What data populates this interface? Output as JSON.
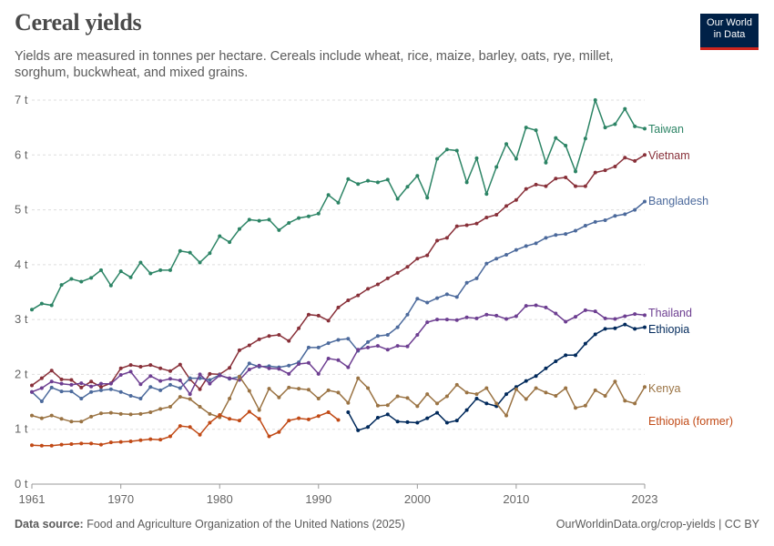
{
  "header": {
    "title": "Cereal yields",
    "subtitle": "Yields are measured in tonnes per hectare. Cereals include wheat, rice, maize, barley, oats, rye, millet, sorghum, buckwheat, and mixed grains."
  },
  "logo": {
    "line1": "Our World",
    "line2": "in Data",
    "bg": "#002147",
    "accent": "#ce261e"
  },
  "footer": {
    "source_label": "Data source:",
    "source_text": "Food and Agriculture Organization of the United Nations (2025)",
    "url_license": "OurWorldinData.org/crop-yields | CC BY"
  },
  "chart_data": {
    "type": "line",
    "title": "Cereal yields",
    "xlabel": "",
    "ylabel": "",
    "xlim": [
      1961,
      2023
    ],
    "ylim": [
      0,
      7
    ],
    "y_ticks": [
      0,
      1,
      2,
      3,
      4,
      5,
      6,
      7
    ],
    "y_tick_labels": [
      "0 t",
      "1 t",
      "2 t",
      "3 t",
      "4 t",
      "5 t",
      "6 t",
      "7 t"
    ],
    "x_ticks": [
      1961,
      1970,
      1980,
      1990,
      2000,
      2010,
      2023
    ],
    "x_tick_labels": [
      "1961",
      "1970",
      "1980",
      "1990",
      "2000",
      "2010",
      "2023"
    ],
    "grid": "horizontal dashed",
    "legend": "right, inline labels at line ends",
    "series": [
      {
        "name": "Taiwan",
        "color": "#2c8465",
        "start": 1961,
        "values": [
          3.18,
          3.29,
          3.26,
          3.63,
          3.74,
          3.69,
          3.76,
          3.9,
          3.62,
          3.88,
          3.77,
          4.04,
          3.84,
          3.9,
          3.9,
          4.25,
          4.22,
          4.04,
          4.21,
          4.52,
          4.41,
          4.65,
          4.82,
          4.8,
          4.82,
          4.63,
          4.76,
          4.85,
          4.88,
          4.93,
          5.27,
          5.13,
          5.56,
          5.47,
          5.53,
          5.5,
          5.55,
          5.2,
          5.42,
          5.62,
          5.22,
          5.93,
          6.1,
          6.08,
          5.5,
          5.94,
          5.29,
          5.78,
          6.2,
          5.93,
          6.5,
          6.45,
          5.86,
          6.31,
          6.17,
          5.7,
          6.3,
          7.0,
          6.5,
          6.56,
          6.84,
          6.52,
          6.48
        ]
      },
      {
        "name": "Vietnam",
        "color": "#883039",
        "start": 1961,
        "values": [
          1.8,
          1.93,
          2.07,
          1.91,
          1.9,
          1.76,
          1.87,
          1.77,
          1.84,
          2.11,
          2.17,
          2.14,
          2.17,
          2.11,
          2.06,
          2.18,
          1.91,
          1.73,
          2.01,
          2.0,
          2.12,
          2.44,
          2.53,
          2.64,
          2.7,
          2.72,
          2.61,
          2.84,
          3.09,
          3.07,
          2.98,
          3.22,
          3.35,
          3.44,
          3.56,
          3.64,
          3.75,
          3.85,
          3.96,
          4.11,
          4.17,
          4.44,
          4.49,
          4.7,
          4.72,
          4.75,
          4.86,
          4.91,
          5.07,
          5.18,
          5.38,
          5.46,
          5.43,
          5.57,
          5.59,
          5.43,
          5.43,
          5.68,
          5.72,
          5.79,
          5.95,
          5.89,
          6.0
        ]
      },
      {
        "name": "Bangladesh",
        "color": "#4c6a9c",
        "start": 1961,
        "values": [
          1.68,
          1.51,
          1.76,
          1.69,
          1.69,
          1.56,
          1.68,
          1.71,
          1.73,
          1.68,
          1.61,
          1.56,
          1.77,
          1.71,
          1.81,
          1.75,
          1.93,
          1.93,
          1.9,
          1.99,
          1.92,
          1.96,
          2.2,
          2.14,
          2.15,
          2.13,
          2.16,
          2.22,
          2.49,
          2.49,
          2.57,
          2.63,
          2.65,
          2.43,
          2.59,
          2.7,
          2.72,
          2.86,
          3.09,
          3.38,
          3.31,
          3.39,
          3.46,
          3.41,
          3.67,
          3.75,
          4.02,
          4.11,
          4.18,
          4.27,
          4.34,
          4.39,
          4.49,
          4.54,
          4.56,
          4.62,
          4.71,
          4.78,
          4.81,
          4.89,
          4.92,
          5.0,
          5.15
        ]
      },
      {
        "name": "Thailand",
        "color": "#6d3e91",
        "start": 1961,
        "values": [
          1.68,
          1.75,
          1.87,
          1.83,
          1.81,
          1.84,
          1.78,
          1.83,
          1.83,
          1.99,
          2.05,
          1.82,
          1.97,
          1.88,
          1.92,
          1.89,
          1.64,
          2.0,
          1.83,
          1.98,
          1.93,
          1.9,
          2.09,
          2.16,
          2.11,
          2.1,
          2.01,
          2.19,
          2.21,
          2.01,
          2.29,
          2.26,
          2.13,
          2.45,
          2.49,
          2.52,
          2.45,
          2.52,
          2.51,
          2.72,
          2.95,
          3.0,
          3.0,
          2.99,
          3.04,
          3.02,
          3.09,
          3.07,
          3.01,
          3.06,
          3.25,
          3.26,
          3.22,
          3.11,
          2.96,
          3.05,
          3.17,
          3.15,
          3.02,
          3.01,
          3.06,
          3.1,
          3.08
        ]
      },
      {
        "name": "Ethiopia",
        "color": "#00295b",
        "start": 1993,
        "values": [
          1.31,
          0.98,
          1.04,
          1.21,
          1.27,
          1.14,
          1.13,
          1.12,
          1.2,
          1.3,
          1.12,
          1.16,
          1.35,
          1.56,
          1.47,
          1.42,
          1.64,
          1.77,
          1.88,
          1.97,
          2.11,
          2.24,
          2.35,
          2.35,
          2.56,
          2.73,
          2.83,
          2.84,
          2.91,
          2.83,
          2.86
        ]
      },
      {
        "name": "Kenya",
        "color": "#9a7343",
        "start": 1961,
        "values": [
          1.25,
          1.2,
          1.25,
          1.19,
          1.14,
          1.14,
          1.23,
          1.29,
          1.3,
          1.28,
          1.27,
          1.28,
          1.31,
          1.37,
          1.41,
          1.59,
          1.55,
          1.41,
          1.28,
          1.22,
          1.56,
          1.96,
          1.7,
          1.35,
          1.74,
          1.58,
          1.76,
          1.74,
          1.72,
          1.56,
          1.71,
          1.67,
          1.48,
          1.93,
          1.75,
          1.43,
          1.44,
          1.6,
          1.57,
          1.42,
          1.64,
          1.47,
          1.6,
          1.81,
          1.67,
          1.64,
          1.75,
          1.47,
          1.25,
          1.73,
          1.55,
          1.75,
          1.67,
          1.61,
          1.75,
          1.39,
          1.43,
          1.71,
          1.61,
          1.87,
          1.52,
          1.47,
          1.77
        ]
      },
      {
        "name": "Ethiopia (former)",
        "color": "#c14a16",
        "start": 1961,
        "values": [
          0.71,
          0.7,
          0.7,
          0.72,
          0.73,
          0.74,
          0.74,
          0.72,
          0.76,
          0.77,
          0.78,
          0.8,
          0.82,
          0.81,
          0.87,
          1.06,
          1.04,
          0.9,
          1.12,
          1.26,
          1.19,
          1.16,
          1.32,
          1.19,
          0.87,
          0.95,
          1.16,
          1.2,
          1.18,
          1.24,
          1.31,
          1.17
        ]
      }
    ]
  }
}
